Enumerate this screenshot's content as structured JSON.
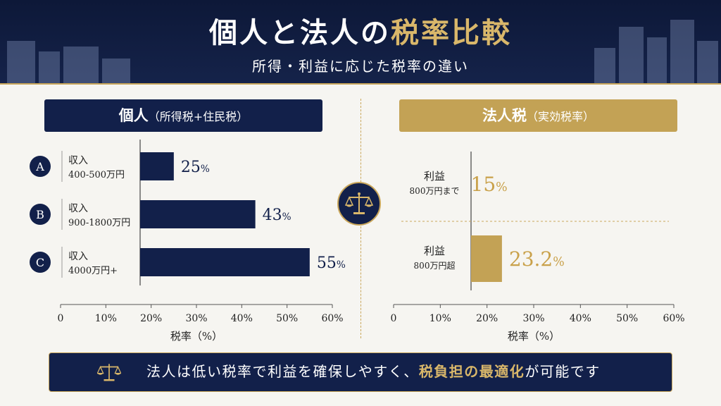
{
  "header": {
    "title_part1": "個人と法人の",
    "title_part2": "税率比較",
    "subtitle": "所得・利益に応じた税率の違い"
  },
  "left_panel": {
    "title": "個人",
    "title_suffix": "（所得税+住民税）"
  },
  "right_panel": {
    "title": "法人税",
    "title_suffix": "（実効税率）"
  },
  "banner": {
    "text_before": "法人は低い税率で利益を確保しやすく、",
    "text_highlight": "税負担の最適化",
    "text_after": "が可能です"
  },
  "colors": {
    "navy": "#12204a",
    "gold": "#c3a255",
    "gold_text": "#c9a14a"
  },
  "icons": [
    "balance-scale-icon"
  ],
  "chart_data": [
    {
      "type": "bar",
      "orientation": "horizontal",
      "categories": [
        {
          "badge": "A",
          "line1": "収入",
          "line2": "400-500万円"
        },
        {
          "badge": "B",
          "line1": "収入",
          "line2": "900-1800万円"
        },
        {
          "badge": "C",
          "line1": "収入",
          "line2": "4000万円+"
        }
      ],
      "values": [
        25,
        43,
        55
      ],
      "value_labels": [
        "25",
        "43",
        "55"
      ],
      "value_unit": "%",
      "xlabel": "税率（%）",
      "xlim": [
        0,
        60
      ],
      "ticks": [
        "0",
        "10%",
        "20%",
        "30%",
        "40%",
        "50%",
        "60%"
      ],
      "color": "#12204a"
    },
    {
      "type": "bar",
      "orientation": "horizontal",
      "categories": [
        {
          "line1": "利益",
          "line2": "800万円まで"
        },
        {
          "line1": "利益",
          "line2": "800万円超"
        }
      ],
      "values": [
        15,
        23.2
      ],
      "value_labels": [
        "15",
        "23.2"
      ],
      "value_unit": "%",
      "xlabel": "税率（%）",
      "xlim": [
        0,
        60
      ],
      "ticks": [
        "0",
        "10%",
        "20%",
        "30%",
        "40%",
        "50%",
        "60%"
      ],
      "color": "#c3a255"
    }
  ]
}
